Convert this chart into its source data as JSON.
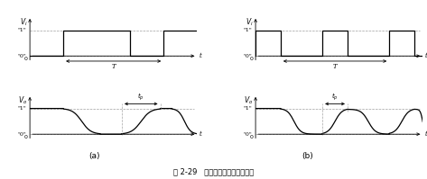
{
  "title": "图 2-29   最高工作频率定义示意图",
  "label_a": "(a)",
  "label_b": "(b)",
  "background": "#ffffff",
  "line_color": "#000000",
  "dashed_color": "#888888",
  "figsize": [
    4.73,
    1.99
  ],
  "dpi": 100
}
